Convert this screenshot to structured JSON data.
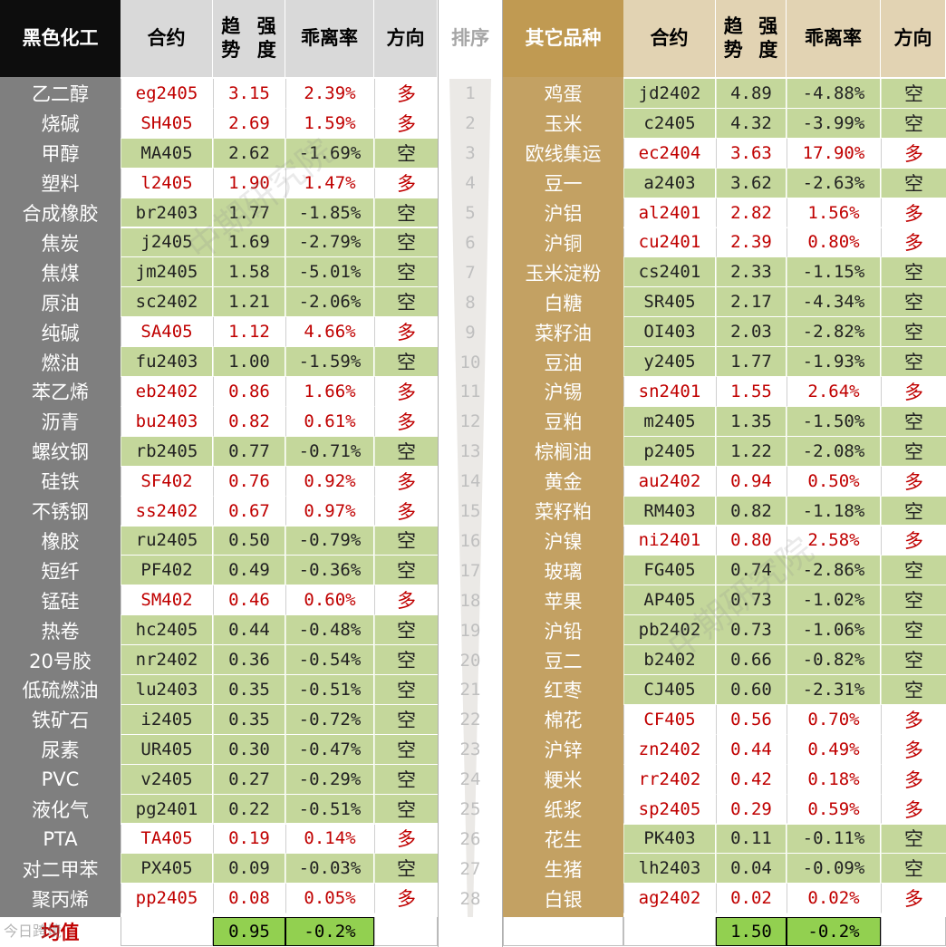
{
  "header": {
    "left_group": "黑色化工",
    "right_group_line1": "其它",
    "right_group_line2": "品种",
    "contract": "合约",
    "trend_line1": "趋势",
    "trend_line2": "强度",
    "deviation": "乖离率",
    "direction": "方向",
    "rank": "排序"
  },
  "left_rows": [
    {
      "name": "乙二醇",
      "contract": "eg2405",
      "trend": "3.15",
      "deviation": "2.39%",
      "direction": "多"
    },
    {
      "name": "烧碱",
      "contract": "SH405",
      "trend": "2.69",
      "deviation": "1.59%",
      "direction": "多"
    },
    {
      "name": "甲醇",
      "contract": "MA405",
      "trend": "2.62",
      "deviation": "-1.69%",
      "direction": "空"
    },
    {
      "name": "塑料",
      "contract": "l2405",
      "trend": "1.90",
      "deviation": "1.47%",
      "direction": "多"
    },
    {
      "name": "合成橡胶",
      "contract": "br2403",
      "trend": "1.77",
      "deviation": "-1.85%",
      "direction": "空"
    },
    {
      "name": "焦炭",
      "contract": "j2405",
      "trend": "1.69",
      "deviation": "-2.79%",
      "direction": "空"
    },
    {
      "name": "焦煤",
      "contract": "jm2405",
      "trend": "1.58",
      "deviation": "-5.01%",
      "direction": "空"
    },
    {
      "name": "原油",
      "contract": "sc2402",
      "trend": "1.21",
      "deviation": "-2.06%",
      "direction": "空"
    },
    {
      "name": "纯碱",
      "contract": "SA405",
      "trend": "1.12",
      "deviation": "4.66%",
      "direction": "多"
    },
    {
      "name": "燃油",
      "contract": "fu2403",
      "trend": "1.00",
      "deviation": "-1.59%",
      "direction": "空"
    },
    {
      "name": "苯乙烯",
      "contract": "eb2402",
      "trend": "0.86",
      "deviation": "1.66%",
      "direction": "多"
    },
    {
      "name": "沥青",
      "contract": "bu2403",
      "trend": "0.82",
      "deviation": "0.61%",
      "direction": "多"
    },
    {
      "name": "螺纹钢",
      "contract": "rb2405",
      "trend": "0.77",
      "deviation": "-0.71%",
      "direction": "空"
    },
    {
      "name": "硅铁",
      "contract": "SF402",
      "trend": "0.76",
      "deviation": "0.92%",
      "direction": "多"
    },
    {
      "name": "不锈钢",
      "contract": "ss2402",
      "trend": "0.67",
      "deviation": "0.97%",
      "direction": "多"
    },
    {
      "name": "橡胶",
      "contract": "ru2405",
      "trend": "0.50",
      "deviation": "-0.79%",
      "direction": "空"
    },
    {
      "name": "短纤",
      "contract": "PF402",
      "trend": "0.49",
      "deviation": "-0.36%",
      "direction": "空"
    },
    {
      "name": "锰硅",
      "contract": "SM402",
      "trend": "0.46",
      "deviation": "0.60%",
      "direction": "多"
    },
    {
      "name": "热卷",
      "contract": "hc2405",
      "trend": "0.44",
      "deviation": "-0.48%",
      "direction": "空"
    },
    {
      "name": "20号胶",
      "contract": "nr2402",
      "trend": "0.36",
      "deviation": "-0.54%",
      "direction": "空"
    },
    {
      "name": "低硫燃油",
      "contract": "lu2403",
      "trend": "0.35",
      "deviation": "-0.51%",
      "direction": "空"
    },
    {
      "name": "铁矿石",
      "contract": "i2405",
      "trend": "0.35",
      "deviation": "-0.72%",
      "direction": "空"
    },
    {
      "name": "尿素",
      "contract": "UR405",
      "trend": "0.30",
      "deviation": "-0.47%",
      "direction": "空"
    },
    {
      "name": "PVC",
      "contract": "v2405",
      "trend": "0.27",
      "deviation": "-0.29%",
      "direction": "空"
    },
    {
      "name": "液化气",
      "contract": "pg2401",
      "trend": "0.22",
      "deviation": "-0.51%",
      "direction": "空"
    },
    {
      "name": "PTA",
      "contract": "TA405",
      "trend": "0.19",
      "deviation": "0.14%",
      "direction": "多"
    },
    {
      "name": "对二甲苯",
      "contract": "PX405",
      "trend": "0.09",
      "deviation": "-0.03%",
      "direction": "空"
    },
    {
      "name": "聚丙烯",
      "contract": "pp2405",
      "trend": "0.08",
      "deviation": "0.05%",
      "direction": "多"
    }
  ],
  "right_rows": [
    {
      "name": "鸡蛋",
      "contract": "jd2402",
      "trend": "4.89",
      "deviation": "-4.88%",
      "direction": "空"
    },
    {
      "name": "玉米",
      "contract": "c2405",
      "trend": "4.32",
      "deviation": "-3.99%",
      "direction": "空"
    },
    {
      "name": "欧线集运",
      "contract": "ec2404",
      "trend": "3.63",
      "deviation": "17.90%",
      "direction": "多"
    },
    {
      "name": "豆一",
      "contract": "a2403",
      "trend": "3.62",
      "deviation": "-2.63%",
      "direction": "空"
    },
    {
      "name": "沪铝",
      "contract": "al2401",
      "trend": "2.82",
      "deviation": "1.56%",
      "direction": "多"
    },
    {
      "name": "沪铜",
      "contract": "cu2401",
      "trend": "2.39",
      "deviation": "0.80%",
      "direction": "多"
    },
    {
      "name": "玉米淀粉",
      "contract": "cs2401",
      "trend": "2.33",
      "deviation": "-1.15%",
      "direction": "空"
    },
    {
      "name": "白糖",
      "contract": "SR405",
      "trend": "2.17",
      "deviation": "-4.34%",
      "direction": "空"
    },
    {
      "name": "菜籽油",
      "contract": "OI403",
      "trend": "2.03",
      "deviation": "-2.82%",
      "direction": "空"
    },
    {
      "name": "豆油",
      "contract": "y2405",
      "trend": "1.77",
      "deviation": "-1.93%",
      "direction": "空"
    },
    {
      "name": "沪锡",
      "contract": "sn2401",
      "trend": "1.55",
      "deviation": "2.64%",
      "direction": "多"
    },
    {
      "name": "豆粕",
      "contract": "m2405",
      "trend": "1.35",
      "deviation": "-1.50%",
      "direction": "空"
    },
    {
      "name": "棕榈油",
      "contract": "p2405",
      "trend": "1.22",
      "deviation": "-2.08%",
      "direction": "空"
    },
    {
      "name": "黄金",
      "contract": "au2402",
      "trend": "0.94",
      "deviation": "0.50%",
      "direction": "多"
    },
    {
      "name": "菜籽粕",
      "contract": "RM403",
      "trend": "0.82",
      "deviation": "-1.18%",
      "direction": "空"
    },
    {
      "name": "沪镍",
      "contract": "ni2401",
      "trend": "0.80",
      "deviation": "2.58%",
      "direction": "多"
    },
    {
      "name": "玻璃",
      "contract": "FG405",
      "trend": "0.74",
      "deviation": "-2.86%",
      "direction": "空"
    },
    {
      "name": "苹果",
      "contract": "AP405",
      "trend": "0.73",
      "deviation": "-1.02%",
      "direction": "空"
    },
    {
      "name": "沪铅",
      "contract": "pb2402",
      "trend": "0.73",
      "deviation": "-1.06%",
      "direction": "空"
    },
    {
      "name": "豆二",
      "contract": "b2402",
      "trend": "0.66",
      "deviation": "-0.82%",
      "direction": "空"
    },
    {
      "name": "红枣",
      "contract": "CJ405",
      "trend": "0.60",
      "deviation": "-2.31%",
      "direction": "空"
    },
    {
      "name": "棉花",
      "contract": "CF405",
      "trend": "0.56",
      "deviation": "0.70%",
      "direction": "多"
    },
    {
      "name": "沪锌",
      "contract": "zn2402",
      "trend": "0.44",
      "deviation": "0.49%",
      "direction": "多"
    },
    {
      "name": "粳米",
      "contract": "rr2402",
      "trend": "0.42",
      "deviation": "0.18%",
      "direction": "多"
    },
    {
      "name": "纸浆",
      "contract": "sp2405",
      "trend": "0.29",
      "deviation": "0.59%",
      "direction": "多"
    },
    {
      "name": "花生",
      "contract": "PK403",
      "trend": "0.11",
      "deviation": "-0.11%",
      "direction": "空"
    },
    {
      "name": "生猪",
      "contract": "lh2403",
      "trend": "0.04",
      "deviation": "-0.09%",
      "direction": "空"
    },
    {
      "name": "白银",
      "contract": "ag2402",
      "trend": "0.02",
      "deviation": "0.02%",
      "direction": "多"
    }
  ],
  "ranks": [
    "1",
    "2",
    "3",
    "4",
    "5",
    "6",
    "7",
    "8",
    "9",
    "10",
    "11",
    "12",
    "13",
    "14",
    "15",
    "16",
    "17",
    "18",
    "19",
    "20",
    "21",
    "22",
    "23",
    "24",
    "25",
    "26",
    "27",
    "28"
  ],
  "average": {
    "label": "均值",
    "left_trend": "0.95",
    "left_deviation": "-0.2%",
    "right_trend": "1.50",
    "right_deviation": "-0.2%"
  },
  "watermarks": [
    "中期研究院",
    "中期研究院"
  ],
  "corner_watermark": "今日跨境",
  "colors": {
    "long_text": "#c00000",
    "short_fill": "#c4d79b",
    "avg_fill": "#92d050",
    "left_name_fill": "#7f7f7f",
    "right_name_fill": "#c3a163",
    "right_header_fill": "#c09a52"
  }
}
